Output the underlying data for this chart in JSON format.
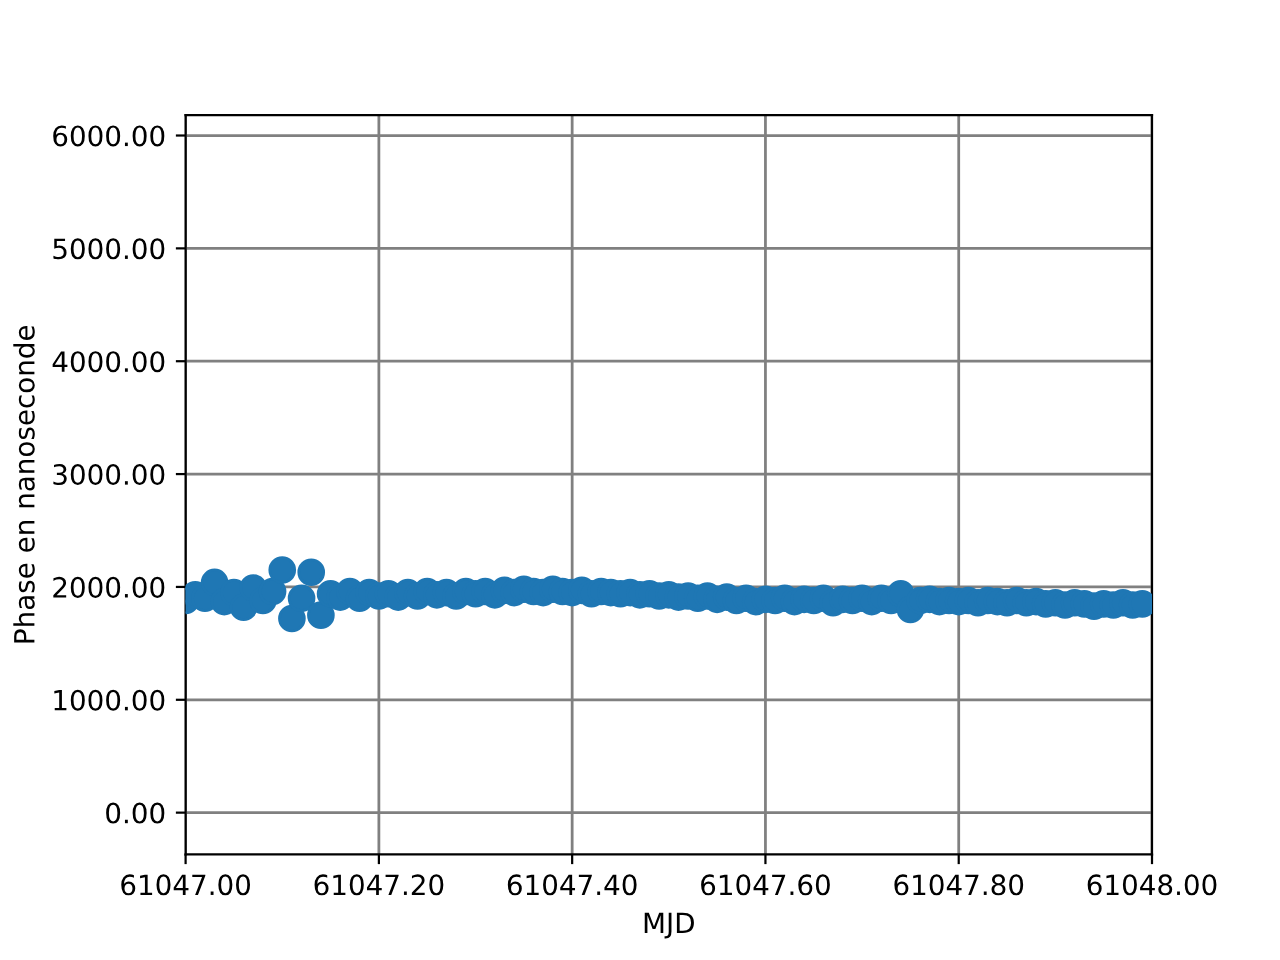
{
  "chart_data": {
    "type": "scatter",
    "xlabel": "MJD",
    "ylabel": "Phase en nanoseconde",
    "x": [
      61047.0,
      61047.01,
      61047.02,
      61047.03,
      61047.04,
      61047.05,
      61047.06,
      61047.07,
      61047.08,
      61047.09,
      61047.1,
      61047.11,
      61047.12,
      61047.13,
      61047.14,
      61047.15,
      61047.16,
      61047.17,
      61047.18,
      61047.19,
      61047.2,
      61047.21,
      61047.22,
      61047.23,
      61047.24,
      61047.25,
      61047.26,
      61047.27,
      61047.28,
      61047.29,
      61047.3,
      61047.31,
      61047.32,
      61047.33,
      61047.34,
      61047.35,
      61047.36,
      61047.37,
      61047.38,
      61047.39,
      61047.4,
      61047.41,
      61047.42,
      61047.43,
      61047.44,
      61047.45,
      61047.46,
      61047.47,
      61047.48,
      61047.49,
      61047.5,
      61047.51,
      61047.52,
      61047.53,
      61047.54,
      61047.55,
      61047.56,
      61047.57,
      61047.58,
      61047.59,
      61047.6,
      61047.61,
      61047.62,
      61047.63,
      61047.64,
      61047.65,
      61047.66,
      61047.67,
      61047.68,
      61047.69,
      61047.7,
      61047.71,
      61047.72,
      61047.73,
      61047.74,
      61047.75,
      61047.76,
      61047.77,
      61047.78,
      61047.79,
      61047.8,
      61047.81,
      61047.82,
      61047.83,
      61047.84,
      61047.85,
      61047.86,
      61047.87,
      61047.88,
      61047.89,
      61047.9,
      61047.91,
      61047.92,
      61047.93,
      61047.94,
      61047.95,
      61047.96,
      61047.97,
      61047.98,
      61047.99
    ],
    "series": [
      {
        "color": "#1f77b4",
        "values": [
          1880,
          1930,
          1900,
          2040,
          1870,
          1950,
          1820,
          1990,
          1880,
          1960,
          2150,
          1720,
          1900,
          2130,
          1750,
          1940,
          1910,
          1960,
          1900,
          1950,
          1920,
          1940,
          1910,
          1950,
          1920,
          1960,
          1930,
          1950,
          1920,
          1960,
          1940,
          1960,
          1930,
          1970,
          1950,
          1980,
          1960,
          1950,
          1980,
          1960,
          1950,
          1970,
          1940,
          1960,
          1950,
          1940,
          1950,
          1930,
          1940,
          1920,
          1930,
          1910,
          1920,
          1900,
          1920,
          1890,
          1910,
          1880,
          1900,
          1870,
          1890,
          1880,
          1900,
          1870,
          1890,
          1880,
          1900,
          1860,
          1890,
          1880,
          1900,
          1870,
          1900,
          1880,
          1940,
          1800,
          1880,
          1890,
          1870,
          1880,
          1870,
          1880,
          1860,
          1880,
          1870,
          1860,
          1880,
          1860,
          1870,
          1850,
          1860,
          1840,
          1860,
          1850,
          1830,
          1850,
          1840,
          1860,
          1840,
          1850
        ]
      }
    ],
    "marker": "circle",
    "xlim": [
      61047.0,
      61048.0
    ],
    "xticks": [
      {
        "value": 61047.0,
        "label": "61047.00"
      },
      {
        "value": 61047.2,
        "label": "61047.20"
      },
      {
        "value": 61047.4,
        "label": "61047.40"
      },
      {
        "value": 61047.6,
        "label": "61047.60"
      },
      {
        "value": 61047.8,
        "label": "61047.80"
      },
      {
        "value": 61048.0,
        "label": "61048.00"
      }
    ],
    "ylim": [
      -370,
      6180
    ],
    "yticks": [
      {
        "value": 0,
        "label": "0.00"
      },
      {
        "value": 1000,
        "label": "1000.00"
      },
      {
        "value": 2000,
        "label": "2000.00"
      },
      {
        "value": 3000,
        "label": "3000.00"
      },
      {
        "value": 4000,
        "label": "4000.00"
      },
      {
        "value": 5000,
        "label": "5000.00"
      },
      {
        "value": 6000,
        "label": "6000.00"
      }
    ],
    "grid": true
  }
}
